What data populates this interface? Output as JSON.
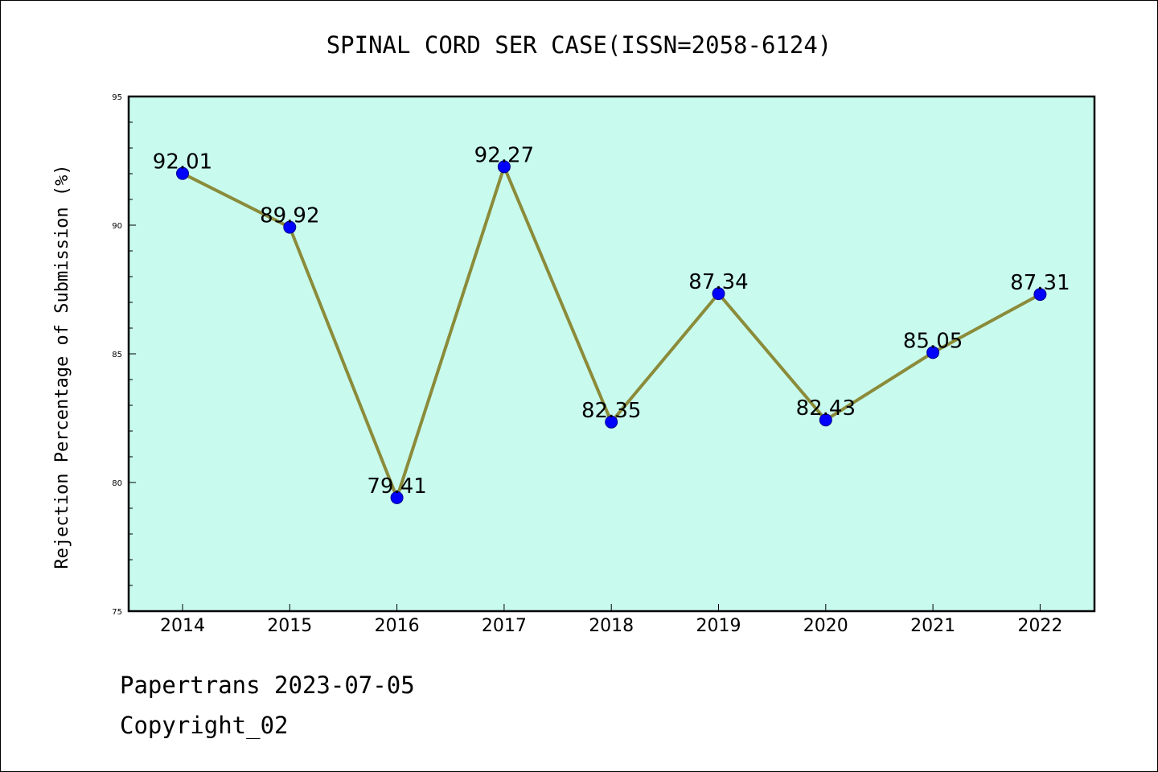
{
  "chart_data": {
    "type": "line",
    "title": "SPINAL CORD SER CASE(ISSN=2058-6124)",
    "xlabel": "",
    "ylabel": "Rejection Percentage of Submission (%)",
    "categories": [
      "2014",
      "2015",
      "2016",
      "2017",
      "2018",
      "2019",
      "2020",
      "2021",
      "2022"
    ],
    "series": [
      {
        "name": "Rejection Percentage",
        "values": [
          92.01,
          89.92,
          79.41,
          92.27,
          82.35,
          87.34,
          82.43,
          85.05,
          87.31
        ],
        "labels": [
          "92.01",
          "89.92",
          "79.41",
          "92.27",
          "82.35",
          "87.34",
          "82.43",
          "85.05",
          "87.31"
        ]
      }
    ],
    "ylim": [
      75,
      95
    ],
    "yticks": [
      75,
      80,
      85,
      90,
      95
    ],
    "ytick_labels": [
      "75",
      "80",
      "85",
      "90",
      "95"
    ],
    "grid": false,
    "legend": "none",
    "colors": {
      "plot_background": "#c8fbee",
      "line": "#8b8b3a",
      "marker_fill": "#0000ff",
      "marker_edge": "#00008b"
    }
  },
  "footer": {
    "source": "Papertrans 2023-07-05",
    "copyright": "Copyright_02"
  }
}
